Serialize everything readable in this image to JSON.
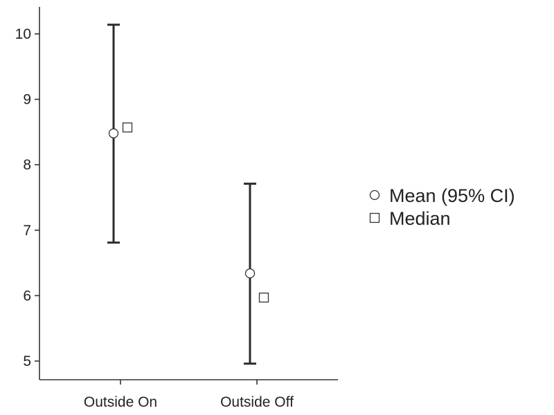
{
  "chart_data": {
    "type": "scatter",
    "title": "",
    "xlabel": "",
    "ylabel": "",
    "categories": [
      "Outside On",
      "Outside Off"
    ],
    "y_ticks": [
      5,
      6,
      7,
      8,
      9,
      10
    ],
    "ylim": [
      4.7,
      10.4
    ],
    "grid": false,
    "legend_position": "right",
    "series": [
      {
        "name": "Mean (95% CI)",
        "marker": "circle",
        "values": [
          8.48,
          6.34
        ],
        "ci_lower": [
          6.81,
          4.96
        ],
        "ci_upper": [
          10.14,
          7.71
        ]
      },
      {
        "name": "Median",
        "marker": "square",
        "values": [
          8.57,
          5.97
        ]
      }
    ]
  },
  "colors": {
    "axis": "#333333",
    "error_bar": "#2b2b2b",
    "marker_fill": "#ffffff",
    "marker_stroke": "#333333",
    "text": "#222222"
  }
}
